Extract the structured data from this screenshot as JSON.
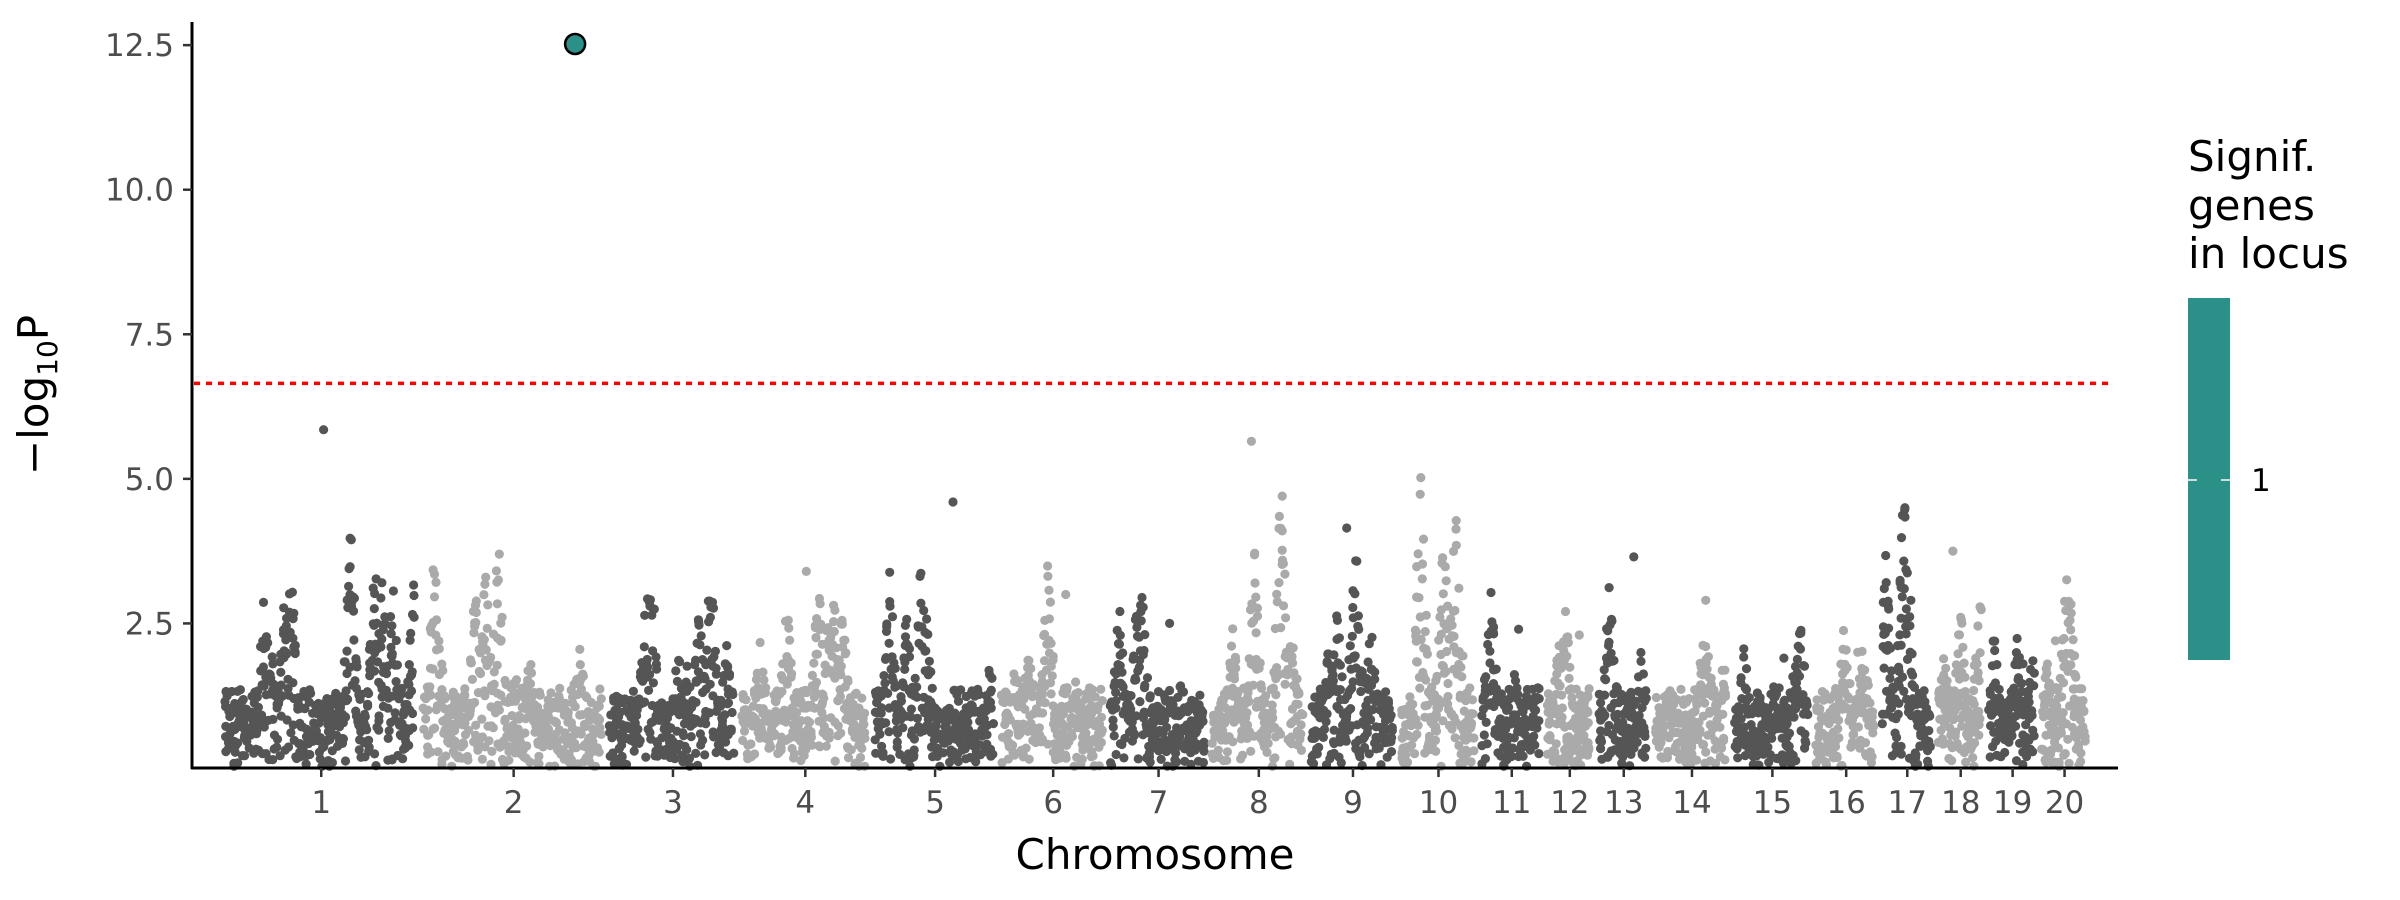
{
  "chart_data": {
    "type": "scatter",
    "title": "",
    "xlabel": "Chromosome",
    "ylabel_prefix": "−log",
    "ylabel_sub": "10",
    "ylabel_suffix": "P",
    "ylim": [
      0,
      12.9
    ],
    "yticks": [
      2.5,
      5.0,
      7.5,
      10.0,
      12.5
    ],
    "ytick_labels": [
      "2.5",
      "5.0",
      "7.5",
      "10.0",
      "12.5"
    ],
    "significance_threshold": 6.65,
    "grid": false,
    "chromosomes": [
      {
        "label": "1",
        "size": 1.95,
        "peak": 3.7,
        "tail": 5.85
      },
      {
        "label": "2",
        "size": 1.83,
        "peak": 3.8,
        "tail": 3.3
      },
      {
        "label": "3",
        "size": 1.3,
        "peak": 3.0,
        "tail": 2.8
      },
      {
        "label": "4",
        "size": 1.3,
        "peak": 2.8,
        "tail": 3.4
      },
      {
        "label": "5",
        "size": 1.25,
        "peak": 3.2,
        "tail": 4.6
      },
      {
        "label": "6",
        "size": 1.07,
        "peak": 3.35,
        "tail": 3.0
      },
      {
        "label": "7",
        "size": 1.0,
        "peak": 2.7,
        "tail": 2.5
      },
      {
        "label": "8",
        "size": 0.97,
        "peak": 4.9,
        "tail": 5.65
      },
      {
        "label": "9",
        "size": 0.88,
        "peak": 3.5,
        "tail": 4.15
      },
      {
        "label": "10",
        "size": 0.8,
        "peak": 4.85,
        "tail": 2.8
      },
      {
        "label": "11",
        "size": 0.64,
        "peak": 2.8,
        "tail": 2.4
      },
      {
        "label": "12",
        "size": 0.5,
        "peak": 2.45,
        "tail": 2.3
      },
      {
        "label": "13",
        "size": 0.56,
        "peak": 2.9,
        "tail": 3.65
      },
      {
        "label": "14",
        "size": 0.78,
        "peak": 2.0,
        "tail": 2.9
      },
      {
        "label": "15",
        "size": 0.8,
        "peak": 2.25,
        "tail": 1.9
      },
      {
        "label": "16",
        "size": 0.65,
        "peak": 2.2,
        "tail": 2.0
      },
      {
        "label": "17",
        "size": 0.55,
        "peak": 4.7,
        "tail": 2.9
      },
      {
        "label": "18",
        "size": 0.5,
        "peak": 2.6,
        "tail": 3.75
      },
      {
        "label": "19",
        "size": 0.52,
        "peak": 2.0,
        "tail": 1.8
      },
      {
        "label": "20",
        "size": 0.5,
        "peak": 3.1,
        "tail": 2.2
      }
    ],
    "highlighted_points": [
      {
        "chromosome": "2",
        "position": 0.83,
        "value": 12.52,
        "signif_genes": 1
      }
    ],
    "colors": {
      "odd_chromosome": "#555555",
      "even_chromosome": "#aaaaaa",
      "threshold_line": "#ff0000",
      "highlight": "#2a9088",
      "axis": "#000000"
    },
    "legend": {
      "title_lines": [
        "Signif.",
        "genes",
        "in locus"
      ],
      "label": "1",
      "placement": "right"
    }
  }
}
